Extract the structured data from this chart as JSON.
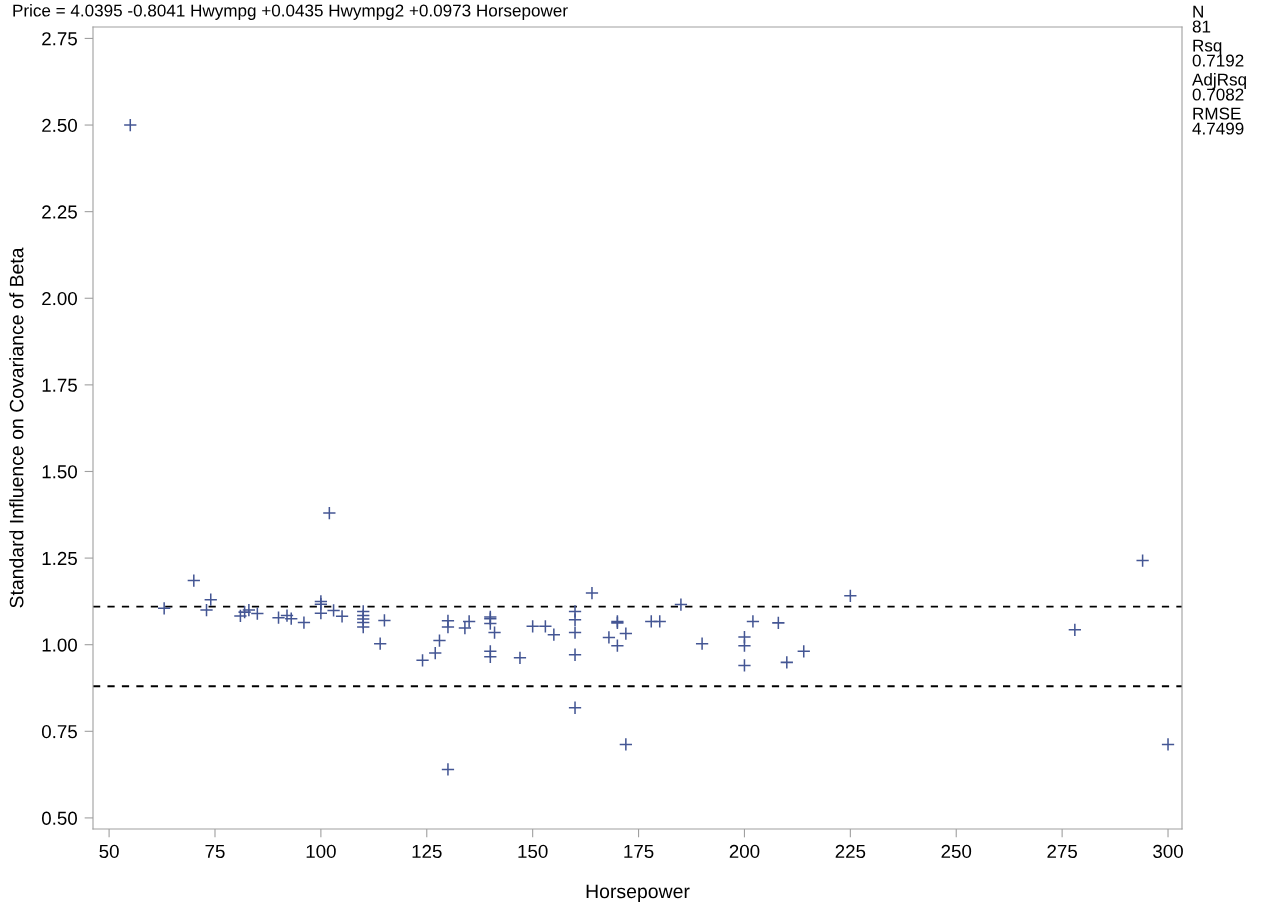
{
  "chart_data": {
    "type": "scatter",
    "title": "Price = 4.0395 -0.8041 Hwympg +0.0435 Hwympg2 +0.0973 Horsepower",
    "xlabel": "Horsepower",
    "ylabel": "Standard Influence on Covariance of Beta",
    "annotations": [
      "N",
      "81",
      "Rsq",
      "0.7192",
      "AdjRsq",
      "0.7082",
      "RMSE",
      "4.7499"
    ],
    "series": [
      {
        "color": "#445694",
        "x": [
          55,
          63,
          70,
          73,
          74,
          81,
          82,
          83,
          85,
          90,
          92,
          93,
          96,
          100,
          100,
          100,
          102,
          103,
          105,
          110,
          110,
          110,
          110,
          110,
          115,
          114,
          124,
          127,
          128,
          130,
          130,
          130,
          134,
          135,
          140,
          140,
          140,
          140,
          140,
          141,
          147,
          150,
          153,
          155,
          160,
          160,
          160,
          160,
          160,
          164,
          168,
          170,
          170,
          170,
          172,
          172,
          178,
          180,
          185,
          190,
          200,
          200,
          200,
          202,
          208,
          210,
          214,
          225,
          278,
          294,
          300
        ],
        "values": [
          2.5,
          1.105,
          1.185,
          1.1,
          1.13,
          1.083,
          1.094,
          1.1,
          1.09,
          1.078,
          1.084,
          1.075,
          1.064,
          1.125,
          1.117,
          1.091,
          1.38,
          1.099,
          1.082,
          1.096,
          1.084,
          1.074,
          1.064,
          1.051,
          1.07,
          1.003,
          0.955,
          0.976,
          1.012,
          1.069,
          1.051,
          0.64,
          1.048,
          1.067,
          1.08,
          1.075,
          1.061,
          0.981,
          0.965,
          1.035,
          0.962,
          1.053,
          1.053,
          1.029,
          1.096,
          1.072,
          1.035,
          0.971,
          0.818,
          1.149,
          1.021,
          1.067,
          1.063,
          0.997,
          1.032,
          0.712,
          1.067,
          1.067,
          1.116,
          1.003,
          1.022,
          0.997,
          0.94,
          1.067,
          1.063,
          0.949,
          0.981,
          1.141,
          1.043,
          1.243,
          0.712
        ]
      }
    ],
    "marker": "cross",
    "xlim": [
      46.2,
      303.3
    ],
    "xticks": [
      50,
      75,
      100,
      125,
      150,
      175,
      200,
      225,
      250,
      275,
      300
    ],
    "ylim": [
      0.468,
      2.783
    ],
    "yticks": [
      {
        "value": 0.5,
        "label": "0.50"
      },
      {
        "value": 0.75,
        "label": "0.75"
      },
      {
        "value": 1.0,
        "label": "1.00"
      },
      {
        "value": 1.25,
        "label": "1.25"
      },
      {
        "value": 1.5,
        "label": "1.50"
      },
      {
        "value": 1.75,
        "label": "1.75"
      },
      {
        "value": 2.0,
        "label": "2.00"
      },
      {
        "value": 2.25,
        "label": "2.25"
      },
      {
        "value": 2.5,
        "label": "2.50"
      },
      {
        "value": 2.75,
        "label": "2.75"
      }
    ],
    "ref_lines": [
      {
        "axis": "y",
        "value": 1.11,
        "color": "#000000",
        "line_style": "dashed"
      },
      {
        "axis": "y",
        "value": 0.88,
        "color": "#000000",
        "line_style": "dashed"
      }
    ],
    "grid": false,
    "legend": false
  }
}
